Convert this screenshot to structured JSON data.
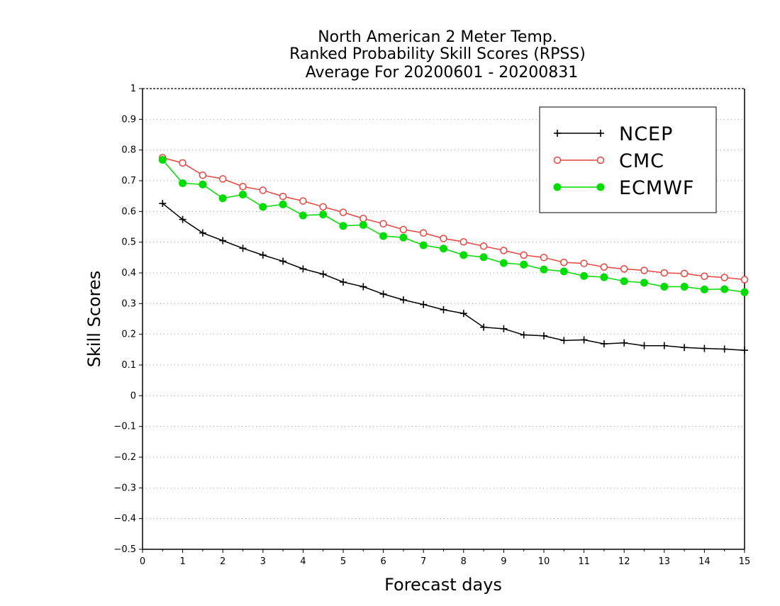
{
  "chart_data": {
    "type": "line",
    "title_lines": [
      "North American 2 Meter Temp.",
      "Ranked Probability Skill Scores (RPSS)",
      "Average For 20200601 - 20200831"
    ],
    "xlabel": "Forecast days",
    "ylabel": "Skill Scores",
    "xlim": [
      0,
      15
    ],
    "ylim": [
      -0.5,
      1
    ],
    "x_ticks": [
      0,
      1,
      2,
      3,
      4,
      5,
      6,
      7,
      8,
      9,
      10,
      11,
      12,
      13,
      14,
      15
    ],
    "y_ticks": [
      -0.5,
      -0.4,
      -0.3,
      -0.2,
      -0.1,
      0,
      0.1,
      0.2,
      0.3,
      0.4,
      0.5,
      0.6,
      0.7,
      0.8,
      0.9,
      1
    ],
    "grid": "horizontal dotted",
    "legend_position": "top-right",
    "x": [
      0.5,
      1,
      1.5,
      2,
      2.5,
      3,
      3.5,
      4,
      4.5,
      5,
      5.5,
      6,
      6.5,
      7,
      7.5,
      8,
      8.5,
      9,
      9.5,
      10,
      10.5,
      11,
      11.5,
      12,
      12.5,
      13,
      13.5,
      14,
      14.5,
      15
    ],
    "series": [
      {
        "name": "NCEP",
        "color": "#000000",
        "marker": "plus",
        "values": [
          0.626,
          0.574,
          0.53,
          0.505,
          0.48,
          0.458,
          0.438,
          0.413,
          0.396,
          0.37,
          0.355,
          0.331,
          0.312,
          0.297,
          0.28,
          0.268,
          0.223,
          0.218,
          0.198,
          0.195,
          0.18,
          0.182,
          0.169,
          0.172,
          0.163,
          0.163,
          0.157,
          0.154,
          0.152,
          0.148
        ]
      },
      {
        "name": "CMC",
        "color": "#e8433c",
        "marker": "open-circle",
        "values": [
          0.775,
          0.758,
          0.718,
          0.706,
          0.681,
          0.669,
          0.649,
          0.634,
          0.615,
          0.597,
          0.577,
          0.56,
          0.541,
          0.53,
          0.512,
          0.501,
          0.487,
          0.473,
          0.458,
          0.45,
          0.434,
          0.431,
          0.419,
          0.413,
          0.408,
          0.4,
          0.398,
          0.389,
          0.385,
          0.378
        ]
      },
      {
        "name": "ECMWF",
        "color": "#00dd00",
        "marker": "filled-circle",
        "values": [
          0.768,
          0.692,
          0.688,
          0.643,
          0.655,
          0.615,
          0.623,
          0.587,
          0.59,
          0.553,
          0.556,
          0.52,
          0.515,
          0.49,
          0.479,
          0.458,
          0.451,
          0.432,
          0.427,
          0.411,
          0.405,
          0.39,
          0.386,
          0.373,
          0.368,
          0.355,
          0.355,
          0.346,
          0.347,
          0.337
        ]
      }
    ]
  }
}
